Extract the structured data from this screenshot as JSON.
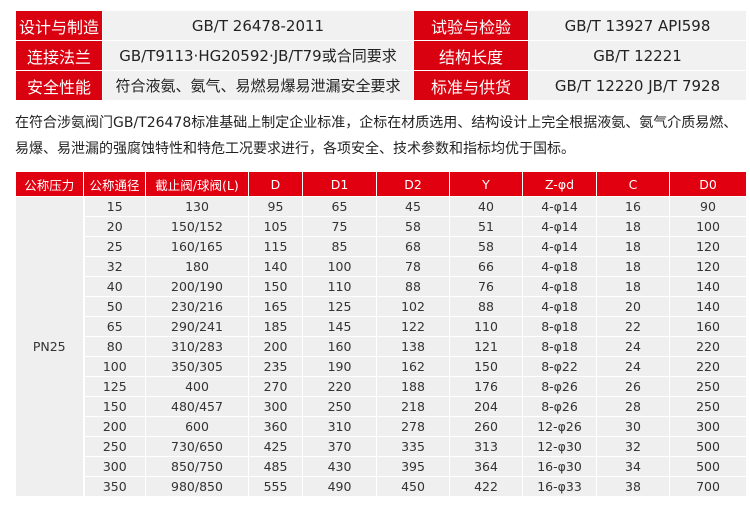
{
  "specs": [
    {
      "l1": "设计与制造",
      "v1": "GB/T 26478-2011",
      "l2": "试验与检验",
      "v2": "GB/T 13927  API598"
    },
    {
      "l1": "连接法兰",
      "v1": "GB/T9113·HG20592·JB/T79或合同要求",
      "l2": "结构长度",
      "v2": "GB/T 12221"
    },
    {
      "l1": "安全性能",
      "v1": "符合液氨、氨气、易燃易爆易泄漏安全要求",
      "l2": "标准与供货",
      "v2": "GB/T 12220   JB/T 7928"
    }
  ],
  "paragraph": "在符合涉氨阀门GB/T26478标准基础上制定企业标准，企标在材质选用、结构设计上完全根据液氨、氨气介质易燃、易爆、易泄漏的强腐蚀特性和特危工况要求进行，各项安全、技术参数和指标均优于国标。",
  "table": {
    "headers": [
      "公称压力",
      "公称通径",
      "截止阀/球阀(L)",
      "D",
      "D1",
      "D2",
      "Y",
      "Z-φd",
      "C",
      "D0"
    ],
    "pressure": "PN25",
    "rows": [
      [
        "15",
        "130",
        "95",
        "65",
        "45",
        "40",
        "4-φ14",
        "16",
        "90"
      ],
      [
        "20",
        "150/152",
        "105",
        "75",
        "58",
        "51",
        "4-φ14",
        "18",
        "100"
      ],
      [
        "25",
        "160/165",
        "115",
        "85",
        "68",
        "58",
        "4-φ14",
        "18",
        "120"
      ],
      [
        "32",
        "180",
        "140",
        "100",
        "78",
        "66",
        "4-φ18",
        "18",
        "120"
      ],
      [
        "40",
        "200/190",
        "150",
        "110",
        "88",
        "76",
        "4-φ18",
        "18",
        "140"
      ],
      [
        "50",
        "230/216",
        "165",
        "125",
        "102",
        "88",
        "4-φ18",
        "20",
        "140"
      ],
      [
        "65",
        "290/241",
        "185",
        "145",
        "122",
        "110",
        "8-φ18",
        "22",
        "160"
      ],
      [
        "80",
        "310/283",
        "200",
        "160",
        "138",
        "121",
        "8-φ18",
        "24",
        "220"
      ],
      [
        "100",
        "350/305",
        "235",
        "190",
        "162",
        "150",
        "8-φ22",
        "24",
        "220"
      ],
      [
        "125",
        "400",
        "270",
        "220",
        "188",
        "176",
        "8-φ26",
        "26",
        "250"
      ],
      [
        "150",
        "480/457",
        "300",
        "250",
        "218",
        "204",
        "8-φ26",
        "28",
        "250"
      ],
      [
        "200",
        "600",
        "360",
        "310",
        "278",
        "260",
        "12-φ26",
        "30",
        "300"
      ],
      [
        "250",
        "730/650",
        "425",
        "370",
        "335",
        "313",
        "12-φ30",
        "32",
        "500"
      ],
      [
        "300",
        "850/750",
        "485",
        "430",
        "395",
        "364",
        "16-φ30",
        "34",
        "500"
      ],
      [
        "350",
        "980/850",
        "555",
        "490",
        "450",
        "422",
        "16-φ33",
        "38",
        "700"
      ]
    ]
  },
  "colors": {
    "accent": "#e0000f"
  }
}
